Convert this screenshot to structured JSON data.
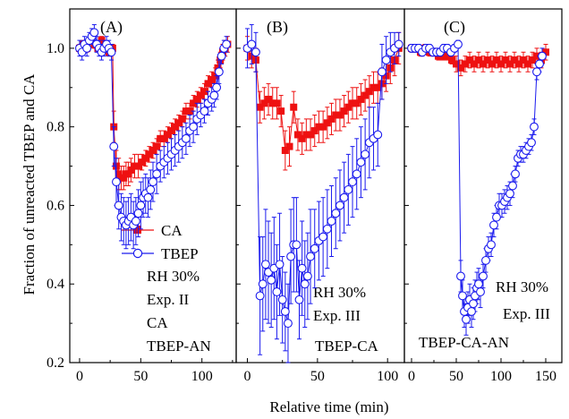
{
  "figure": {
    "ylabel": "Fraction of unreacted TBEP and CA",
    "xlabel": "Relative time (min)",
    "colors": {
      "ca": "#ee1111",
      "tbep": "#1a1aee",
      "frame": "#000000"
    }
  },
  "chart_data": [
    {
      "type": "scatter",
      "panel": "(A)",
      "xlim": [
        -8,
        128
      ],
      "ylim": [
        0.2,
        1.1
      ],
      "xticks": [
        0,
        50,
        100
      ],
      "yticks": [
        0.2,
        0.4,
        0.6,
        0.8,
        1.0
      ],
      "ytick_labels": [
        "0.2",
        "0.4",
        "0.6",
        "0.8",
        "1.0"
      ],
      "legend": [
        "CA",
        "TBEP"
      ],
      "annotations": [
        "RH 30%",
        "Exp. II",
        "CA",
        "TBEP-AN"
      ],
      "series": [
        {
          "name": "CA",
          "marker": "square",
          "x": [
            0,
            3,
            6,
            9,
            12,
            15,
            18,
            21,
            24,
            27,
            28,
            30,
            32,
            34,
            36,
            38,
            40,
            42,
            45,
            48,
            51,
            54,
            57,
            60,
            63,
            66,
            69,
            72,
            75,
            78,
            81,
            84,
            87,
            90,
            93,
            96,
            99,
            102,
            105,
            108,
            111,
            113,
            115,
            117,
            119,
            121
          ],
          "y": [
            1.0,
            1.01,
            1.0,
            1.02,
            1.01,
            1.0,
            1.02,
            1.0,
            0.99,
            1.0,
            0.8,
            0.7,
            0.68,
            0.67,
            0.67,
            0.68,
            0.68,
            0.69,
            0.7,
            0.7,
            0.71,
            0.72,
            0.73,
            0.74,
            0.75,
            0.77,
            0.77,
            0.78,
            0.79,
            0.8,
            0.81,
            0.82,
            0.84,
            0.84,
            0.86,
            0.87,
            0.88,
            0.89,
            0.91,
            0.92,
            0.93,
            0.95,
            0.97,
            0.99,
            1.0,
            1.01
          ],
          "err": [
            0.01,
            0.01,
            0.01,
            0.01,
            0.01,
            0.01,
            0.01,
            0.01,
            0.01,
            0.01,
            0.04,
            0.04,
            0.04,
            0.03,
            0.03,
            0.03,
            0.03,
            0.03,
            0.03,
            0.03,
            0.02,
            0.02,
            0.02,
            0.02,
            0.02,
            0.02,
            0.02,
            0.02,
            0.02,
            0.02,
            0.02,
            0.02,
            0.02,
            0.02,
            0.02,
            0.02,
            0.02,
            0.02,
            0.02,
            0.02,
            0.02,
            0.02,
            0.02,
            0.02,
            0.02,
            0.02
          ]
        },
        {
          "name": "TBEP",
          "marker": "circle",
          "x": [
            0,
            2,
            4,
            6,
            8,
            10,
            12,
            14,
            16,
            18,
            20,
            22,
            24,
            26,
            28,
            30,
            32,
            34,
            36,
            38,
            40,
            42,
            44,
            46,
            48,
            50,
            52,
            54,
            56,
            58,
            60,
            63,
            66,
            69,
            72,
            75,
            78,
            81,
            84,
            87,
            90,
            93,
            96,
            99,
            102,
            105,
            108,
            110,
            112,
            114,
            116,
            118,
            120
          ],
          "y": [
            1.0,
            0.99,
            1.01,
            1.0,
            1.02,
            1.03,
            1.04,
            1.01,
            1.0,
            0.99,
            1.0,
            1.01,
            1.0,
            0.99,
            0.75,
            0.66,
            0.6,
            0.57,
            0.56,
            0.55,
            0.56,
            0.57,
            0.55,
            0.56,
            0.58,
            0.6,
            0.62,
            0.63,
            0.62,
            0.64,
            0.66,
            0.68,
            0.7,
            0.71,
            0.72,
            0.73,
            0.74,
            0.75,
            0.76,
            0.77,
            0.79,
            0.8,
            0.82,
            0.83,
            0.84,
            0.86,
            0.87,
            0.88,
            0.9,
            0.94,
            0.98,
            1.0,
            1.01
          ],
          "err": [
            0.02,
            0.02,
            0.02,
            0.02,
            0.02,
            0.02,
            0.02,
            0.02,
            0.02,
            0.02,
            0.02,
            0.02,
            0.02,
            0.02,
            0.05,
            0.06,
            0.06,
            0.06,
            0.06,
            0.06,
            0.06,
            0.06,
            0.06,
            0.06,
            0.06,
            0.06,
            0.05,
            0.05,
            0.05,
            0.05,
            0.05,
            0.05,
            0.04,
            0.04,
            0.04,
            0.04,
            0.04,
            0.04,
            0.04,
            0.04,
            0.04,
            0.04,
            0.04,
            0.03,
            0.03,
            0.03,
            0.03,
            0.03,
            0.03,
            0.03,
            0.02,
            0.02,
            0.02
          ]
        }
      ]
    },
    {
      "type": "scatter",
      "panel": "(B)",
      "xlim": [
        -8,
        112
      ],
      "ylim": [
        0.2,
        1.1
      ],
      "xticks": [
        0,
        50,
        100
      ],
      "annotations": [
        "RH 30%",
        "Exp. III",
        "TBEP-CA"
      ],
      "series": [
        {
          "name": "CA",
          "marker": "square",
          "x": [
            0,
            3,
            6,
            9,
            12,
            15,
            18,
            21,
            24,
            27,
            30,
            33,
            36,
            39,
            42,
            45,
            48,
            51,
            54,
            57,
            60,
            63,
            66,
            69,
            72,
            75,
            78,
            81,
            84,
            87,
            90,
            93,
            96,
            99,
            102,
            105,
            108
          ],
          "y": [
            1.0,
            0.98,
            0.97,
            0.85,
            0.86,
            0.87,
            0.86,
            0.86,
            0.84,
            0.74,
            0.75,
            0.85,
            0.78,
            0.77,
            0.78,
            0.78,
            0.79,
            0.8,
            0.8,
            0.81,
            0.82,
            0.83,
            0.83,
            0.84,
            0.85,
            0.86,
            0.86,
            0.87,
            0.88,
            0.89,
            0.9,
            0.9,
            0.91,
            0.93,
            0.95,
            0.97,
            1.0
          ],
          "err": [
            0.03,
            0.03,
            0.03,
            0.04,
            0.04,
            0.04,
            0.04,
            0.04,
            0.04,
            0.05,
            0.05,
            0.04,
            0.04,
            0.04,
            0.04,
            0.04,
            0.04,
            0.04,
            0.04,
            0.04,
            0.04,
            0.04,
            0.04,
            0.04,
            0.04,
            0.04,
            0.04,
            0.04,
            0.04,
            0.04,
            0.04,
            0.04,
            0.04,
            0.04,
            0.04,
            0.04,
            0.04
          ]
        },
        {
          "name": "TBEP",
          "marker": "circle",
          "x": [
            0,
            3,
            6,
            9,
            11,
            13,
            15,
            17,
            19,
            21,
            23,
            25,
            27,
            29,
            31,
            33,
            35,
            37,
            39,
            41,
            43,
            45,
            48,
            51,
            54,
            57,
            60,
            63,
            66,
            69,
            72,
            75,
            78,
            81,
            84,
            87,
            90,
            93,
            96,
            99,
            102,
            105,
            108
          ],
          "y": [
            1.0,
            1.01,
            0.99,
            0.37,
            0.4,
            0.45,
            0.43,
            0.41,
            0.44,
            0.38,
            0.45,
            0.36,
            0.33,
            0.3,
            0.47,
            0.5,
            0.5,
            0.36,
            0.44,
            0.4,
            0.42,
            0.47,
            0.49,
            0.51,
            0.52,
            0.54,
            0.56,
            0.58,
            0.6,
            0.62,
            0.64,
            0.66,
            0.68,
            0.71,
            0.73,
            0.76,
            0.77,
            0.78,
            0.94,
            0.97,
            0.99,
            1.0,
            1.01
          ],
          "err": [
            0.05,
            0.05,
            0.05,
            0.15,
            0.12,
            0.14,
            0.13,
            0.12,
            0.13,
            0.12,
            0.13,
            0.11,
            0.1,
            0.1,
            0.12,
            0.12,
            0.12,
            0.1,
            0.12,
            0.11,
            0.11,
            0.12,
            0.1,
            0.1,
            0.1,
            0.1,
            0.09,
            0.09,
            0.09,
            0.09,
            0.09,
            0.09,
            0.09,
            0.09,
            0.09,
            0.09,
            0.08,
            0.08,
            0.07,
            0.06,
            0.05,
            0.04,
            0.03
          ]
        }
      ]
    },
    {
      "type": "scatter",
      "panel": "(C)",
      "xlim": [
        -8,
        168
      ],
      "ylim": [
        0.2,
        1.1
      ],
      "xticks": [
        0,
        50,
        100,
        150
      ],
      "annotations": [
        "RH 30%",
        "Exp. III",
        "TBEP-CA-AN"
      ],
      "series": [
        {
          "name": "CA",
          "marker": "square",
          "x": [
            0,
            5,
            10,
            15,
            20,
            25,
            30,
            35,
            40,
            45,
            50,
            55,
            60,
            65,
            70,
            75,
            80,
            85,
            90,
            95,
            100,
            105,
            110,
            115,
            120,
            125,
            130,
            135,
            140,
            145,
            150
          ],
          "y": [
            1.0,
            1.0,
            0.99,
            1.0,
            0.99,
            0.99,
            0.98,
            0.98,
            0.98,
            0.97,
            0.96,
            0.95,
            0.96,
            0.97,
            0.96,
            0.97,
            0.96,
            0.97,
            0.96,
            0.97,
            0.96,
            0.97,
            0.96,
            0.97,
            0.96,
            0.97,
            0.96,
            0.97,
            0.98,
            0.97,
            0.99
          ],
          "err": [
            0.01,
            0.01,
            0.01,
            0.01,
            0.01,
            0.01,
            0.01,
            0.01,
            0.01,
            0.01,
            0.02,
            0.02,
            0.02,
            0.02,
            0.02,
            0.02,
            0.02,
            0.02,
            0.02,
            0.02,
            0.02,
            0.02,
            0.02,
            0.02,
            0.02,
            0.02,
            0.02,
            0.02,
            0.02,
            0.02,
            0.02
          ]
        },
        {
          "name": "TBEP",
          "marker": "circle",
          "x": [
            0,
            4,
            8,
            12,
            16,
            20,
            24,
            28,
            32,
            36,
            40,
            44,
            48,
            52,
            55,
            57,
            59,
            61,
            63,
            65,
            67,
            69,
            71,
            73,
            75,
            77,
            80,
            83,
            86,
            89,
            92,
            95,
            98,
            101,
            104,
            107,
            110,
            113,
            116,
            119,
            122,
            125,
            128,
            131,
            134,
            137,
            140,
            143,
            146
          ],
          "y": [
            1.0,
            1.0,
            1.0,
            0.99,
            1.0,
            1.0,
            0.99,
            0.99,
            0.99,
            1.0,
            1.0,
            0.99,
            1.0,
            1.01,
            0.42,
            0.37,
            0.33,
            0.31,
            0.34,
            0.36,
            0.33,
            0.35,
            0.37,
            0.39,
            0.4,
            0.38,
            0.42,
            0.46,
            0.49,
            0.5,
            0.55,
            0.57,
            0.6,
            0.6,
            0.61,
            0.62,
            0.63,
            0.65,
            0.68,
            0.72,
            0.73,
            0.73,
            0.74,
            0.75,
            0.76,
            0.8,
            0.94,
            0.96,
            0.98
          ],
          "err": [
            0.01,
            0.01,
            0.01,
            0.01,
            0.01,
            0.01,
            0.01,
            0.01,
            0.01,
            0.01,
            0.01,
            0.01,
            0.01,
            0.01,
            0.04,
            0.04,
            0.04,
            0.04,
            0.04,
            0.04,
            0.04,
            0.04,
            0.04,
            0.04,
            0.04,
            0.04,
            0.03,
            0.03,
            0.03,
            0.03,
            0.03,
            0.03,
            0.03,
            0.03,
            0.03,
            0.03,
            0.03,
            0.03,
            0.02,
            0.02,
            0.02,
            0.02,
            0.02,
            0.02,
            0.02,
            0.02,
            0.02,
            0.02,
            0.02
          ]
        }
      ]
    }
  ]
}
